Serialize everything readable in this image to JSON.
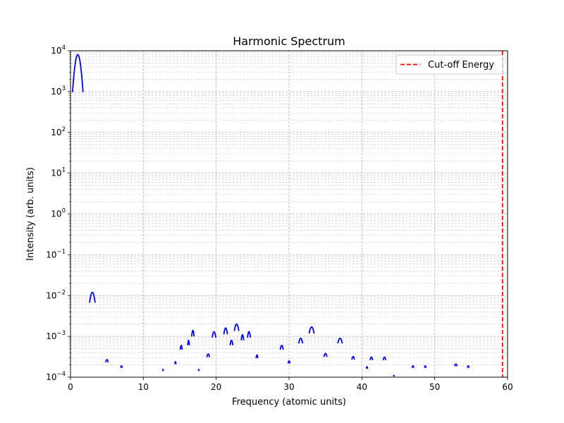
{
  "chart_data": {
    "type": "line",
    "title": "Harmonic Spectrum",
    "xlabel": "Frequency (atomic units)",
    "ylabel": "Intensity (arb. units)",
    "xlim": [
      0,
      60
    ],
    "ylim": [
      0.0001,
      10000
    ],
    "yscale": "log",
    "grid": true,
    "x_ticks": [
      0,
      10,
      20,
      30,
      40,
      50,
      60
    ],
    "y_ticks": [
      {
        "base": "10",
        "exp": "−4"
      },
      {
        "base": "10",
        "exp": "−3"
      },
      {
        "base": "10",
        "exp": "−2"
      },
      {
        "base": "10",
        "exp": "−1"
      },
      {
        "base": "10",
        "exp": "0"
      },
      {
        "base": "10",
        "exp": "1"
      },
      {
        "base": "10",
        "exp": "2"
      },
      {
        "base": "10",
        "exp": "3"
      },
      {
        "base": "10",
        "exp": "4"
      }
    ],
    "legend": {
      "position": "top-right",
      "entries": [
        "Cut-off Energy"
      ]
    },
    "series_color": "#0000ff",
    "cutoff_color": "#ff0000",
    "cutoff_energy": 59.3,
    "peaks": [
      {
        "x": 1.0,
        "value": 8000,
        "width": 0.35
      },
      {
        "x": 3.0,
        "value": 0.012,
        "width": 0.35
      },
      {
        "x": 5.0,
        "value": 0.00027,
        "width": 0.3
      },
      {
        "x": 7.0,
        "value": 0.00019,
        "width": 0.25
      },
      {
        "x": 12.7,
        "value": 0.000155,
        "width": 0.12
      },
      {
        "x": 14.4,
        "value": 0.00024,
        "width": 0.15
      },
      {
        "x": 15.2,
        "value": 0.0006,
        "width": 0.2
      },
      {
        "x": 16.2,
        "value": 0.0008,
        "width": 0.15
      },
      {
        "x": 16.8,
        "value": 0.0014,
        "width": 0.2
      },
      {
        "x": 17.6,
        "value": 0.000155,
        "width": 0.1
      },
      {
        "x": 18.9,
        "value": 0.00037,
        "width": 0.3
      },
      {
        "x": 19.7,
        "value": 0.0013,
        "width": 0.3
      },
      {
        "x": 21.3,
        "value": 0.0016,
        "width": 0.3
      },
      {
        "x": 22.1,
        "value": 0.0008,
        "width": 0.25
      },
      {
        "x": 22.8,
        "value": 0.002,
        "width": 0.35
      },
      {
        "x": 23.6,
        "value": 0.0011,
        "width": 0.2
      },
      {
        "x": 24.5,
        "value": 0.0013,
        "width": 0.25
      },
      {
        "x": 25.6,
        "value": 0.00035,
        "width": 0.2
      },
      {
        "x": 29.0,
        "value": 0.0006,
        "width": 0.3
      },
      {
        "x": 30.0,
        "value": 0.00025,
        "width": 0.25
      },
      {
        "x": 31.6,
        "value": 0.0009,
        "width": 0.35
      },
      {
        "x": 33.1,
        "value": 0.0017,
        "width": 0.4
      },
      {
        "x": 35.0,
        "value": 0.00038,
        "width": 0.35
      },
      {
        "x": 37.0,
        "value": 0.0009,
        "width": 0.4
      },
      {
        "x": 38.8,
        "value": 0.00032,
        "width": 0.3
      },
      {
        "x": 40.7,
        "value": 0.00018,
        "width": 0.2
      },
      {
        "x": 41.3,
        "value": 0.00031,
        "width": 0.3
      },
      {
        "x": 43.1,
        "value": 0.00031,
        "width": 0.3
      },
      {
        "x": 44.4,
        "value": 0.00011,
        "width": 0.2
      },
      {
        "x": 47.0,
        "value": 0.00019,
        "width": 0.25
      },
      {
        "x": 48.7,
        "value": 0.00019,
        "width": 0.25
      },
      {
        "x": 52.9,
        "value": 0.00021,
        "width": 0.35
      },
      {
        "x": 54.6,
        "value": 0.00019,
        "width": 0.25
      }
    ]
  }
}
